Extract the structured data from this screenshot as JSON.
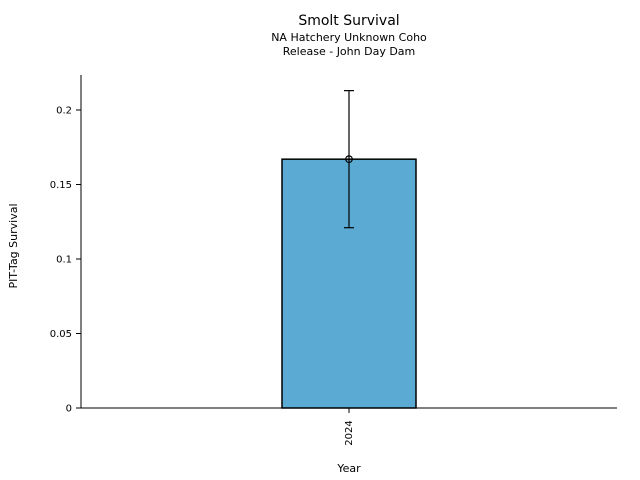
{
  "chart_data": {
    "type": "bar",
    "title": "Smolt Survival",
    "subtitle_lines": [
      "NA Hatchery Unknown Coho",
      "Release - John Day Dam"
    ],
    "xlabel": "Year",
    "ylabel": "PIT-Tag Survival",
    "categories": [
      "2024"
    ],
    "values": [
      0.167
    ],
    "error_bars": [
      {
        "low": 0.121,
        "high": 0.213
      }
    ],
    "marker": "open-circle",
    "yticks": [
      {
        "value": 0,
        "label": "0"
      },
      {
        "value": 0.05,
        "label": "0.05"
      },
      {
        "value": 0.1,
        "label": "0.1"
      },
      {
        "value": 0.15,
        "label": "0.15"
      },
      {
        "value": 0.2,
        "label": "0.2"
      }
    ],
    "ylim": [
      0,
      0.2235
    ],
    "grid": false,
    "legend": "none",
    "bar_color": "#5AAAD4",
    "bar_edge_color": "#000000",
    "axis_color": "#000000",
    "text_color": "#000000",
    "background_color": "#FFFFFF"
  }
}
